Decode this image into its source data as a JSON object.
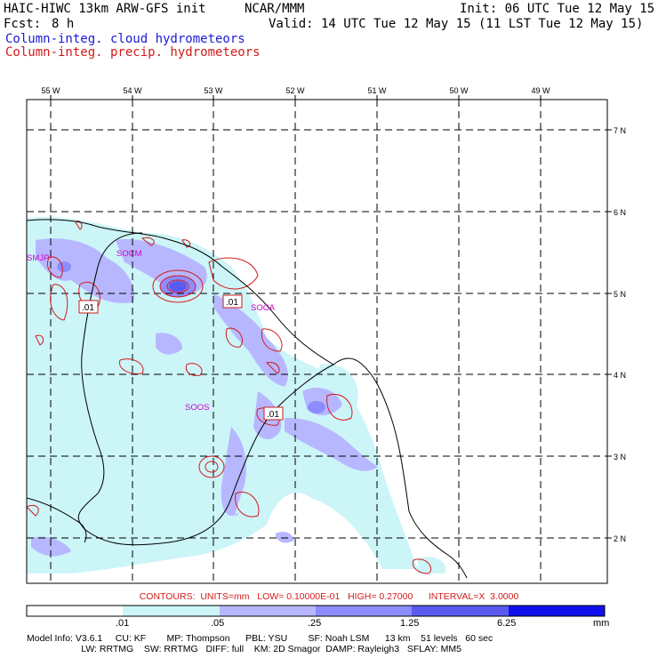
{
  "header": {
    "model": "HAIC-HIWC 13km ARW-GFS init",
    "org": "NCAR/MMM",
    "init": "Init: 06 UTC Tue 12 May 15",
    "fcst_label": "Fcst:",
    "fcst_value": "8 h",
    "valid": "Valid: 14 UTC Tue 12 May 15 (11 LST Tue 12 May 15)",
    "field1": "Column-integ. cloud hydrometeors",
    "field2": "Column-integ. precip. hydrometeors"
  },
  "map": {
    "lon_labels": [
      "55 W",
      "54 W",
      "53 W",
      "52 W",
      "51 W",
      "50 W",
      "49 W"
    ],
    "lat_labels": [
      "7 N",
      "6 N",
      "5 N",
      "4 N",
      "3 N",
      "2 N"
    ],
    "station_labels": [
      "SMJP",
      "SOCM",
      "SOCA",
      "SOOS"
    ],
    "contour_labels": [
      ".01",
      ".01",
      ".01"
    ]
  },
  "colorbar": {
    "unit": "mm",
    "ticks": [
      ".01",
      ".05",
      ".25",
      "1.25",
      "6.25"
    ],
    "colors": [
      "#ffffff",
      "#ccf5f8",
      "#b7b7ff",
      "#8c8cff",
      "#5a5af0",
      "#1010ee"
    ]
  },
  "contours_text": "CONTOURS:  UNITS=mm   LOW= 0.10000E-01   HIGH= 0.27000      INTERVAL=X  3.0000",
  "model_info": {
    "line1": "Model Info: V3.6.1     CU: KF        MP: Thompson      PBL: YSU        SF: Noah LSM      13 km    51 levels   60 sec",
    "line2": "                     LW: RRTMG    SW: RRTMG   DIFF: full    KM: 2D Smagor  DAMP: Rayleigh3   SFLAY: MM5"
  }
}
